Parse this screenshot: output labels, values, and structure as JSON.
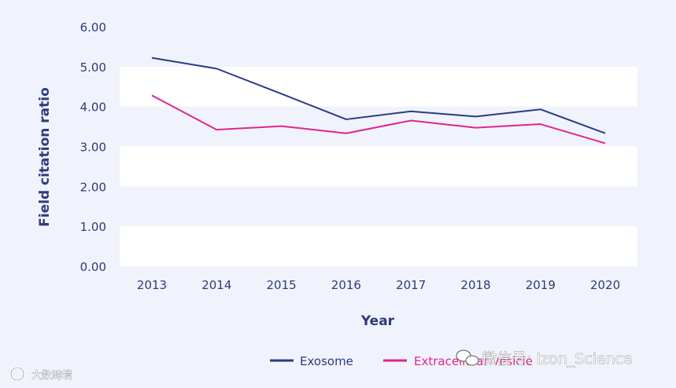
{
  "chart_data": {
    "type": "line",
    "title": "",
    "xlabel": "Year",
    "ylabel": "Field citation ratio",
    "categories": [
      "2013",
      "2014",
      "2015",
      "2016",
      "2017",
      "2018",
      "2019",
      "2020"
    ],
    "ylim": [
      0,
      6
    ],
    "yticks": [
      "0.00",
      "1.00",
      "2.00",
      "3.00",
      "4.00",
      "5.00",
      "6.00"
    ],
    "grid": "alternating horizontal bands",
    "legend_position": "bottom",
    "series": [
      {
        "name": "Exosome",
        "color": "#2b3a85",
        "values": [
          5.22,
          4.95,
          4.32,
          3.68,
          3.88,
          3.75,
          3.93,
          3.33
        ]
      },
      {
        "name": "Extracellular vesicle",
        "color": "#e0258c",
        "values": [
          4.28,
          3.42,
          3.51,
          3.33,
          3.65,
          3.47,
          3.56,
          3.08
        ]
      }
    ]
  },
  "watermarks": {
    "right": "微信号: Izon_Science",
    "left": "大数跨境"
  }
}
